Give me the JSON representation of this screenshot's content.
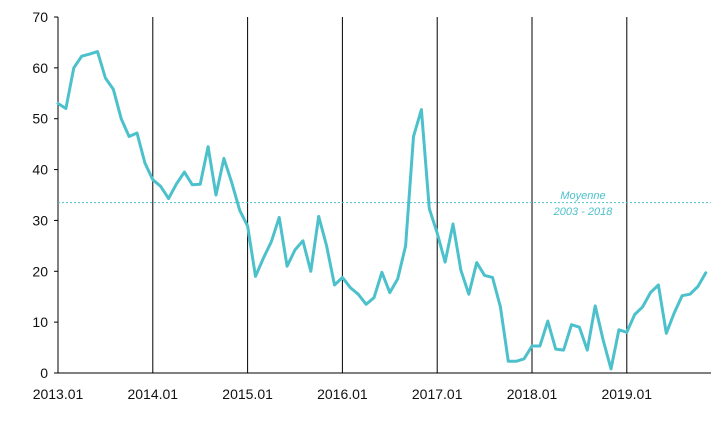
{
  "chart_data": {
    "type": "line",
    "title": "",
    "xlabel": "",
    "ylabel": "",
    "ylim": [
      0,
      70
    ],
    "y_ticks": [
      "0",
      "10",
      "20",
      "30",
      "40",
      "50",
      "60",
      "70"
    ],
    "x_ticks": [
      "2013.01",
      "2014.01",
      "2015.01",
      "2016.01",
      "2017.01",
      "2018.01",
      "2019.01"
    ],
    "grid": "vertical lines at each year",
    "colors": {
      "series": "#4dc1cb",
      "reference": "#4dc1cb",
      "gridline": "#000000"
    },
    "reference_line": {
      "value": 33.5,
      "label_line1": "Moyenne",
      "label_line2": "2003 - 2018"
    },
    "series": [
      {
        "values": [
          53.0,
          52.0,
          60.0,
          62.3,
          62.7,
          63.2,
          58.0,
          55.8,
          50.0,
          46.5,
          47.2,
          41.3,
          38.0,
          36.7,
          34.3,
          37.2,
          39.5,
          37.0,
          37.1,
          44.5,
          35.0,
          42.2,
          37.4,
          32.0,
          28.9,
          19.0,
          22.6,
          25.8,
          30.6,
          21.0,
          24.2,
          26.0,
          20.0,
          30.8,
          25.0,
          17.3,
          18.8,
          16.8,
          15.5,
          13.5,
          14.8,
          19.8,
          15.8,
          18.5,
          25.0,
          46.5,
          51.8,
          32.3,
          27.5,
          21.8,
          29.3,
          20.2,
          15.5,
          21.7,
          19.2,
          18.8,
          13.0,
          2.3,
          2.3,
          2.8,
          5.3,
          5.3,
          10.2,
          4.7,
          4.5,
          9.5,
          9.0,
          4.5,
          13.2,
          6.5,
          0.8,
          8.5,
          8.0,
          11.5,
          13.0,
          15.8,
          17.3,
          7.8,
          11.8,
          15.2,
          15.5,
          17.0,
          19.7
        ]
      }
    ]
  }
}
